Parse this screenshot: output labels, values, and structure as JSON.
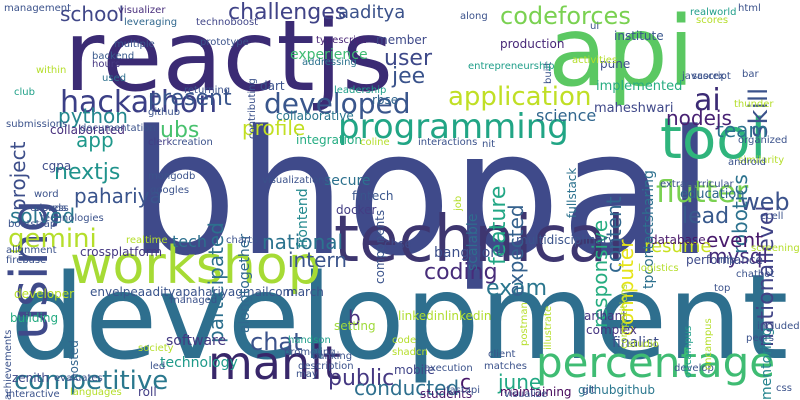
{
  "words": [
    {
      "text": "bhopal",
      "color": "#3f4a8a"
    },
    {
      "text": "development",
      "color": "#2e6f8e"
    },
    {
      "text": "reactjs",
      "color": "#3b2b74"
    },
    {
      "text": "api",
      "color": "#5bc862"
    },
    {
      "text": "technical",
      "color": "#3e3670"
    },
    {
      "text": "workshop",
      "color": "#a6db35"
    },
    {
      "text": "using",
      "color": "#3f4a8a"
    },
    {
      "text": "tool",
      "color": "#2fb47c"
    },
    {
      "text": "percentage",
      "color": "#3fbc73"
    },
    {
      "text": "manit",
      "color": "#38276a"
    },
    {
      "text": "programming",
      "color": "#21a585"
    },
    {
      "text": "developed",
      "color": "#39568c"
    },
    {
      "text": "hackathon",
      "color": "#3b3f86"
    },
    {
      "text": "challenges",
      "color": "#404387"
    },
    {
      "text": "codeforces",
      "color": "#7ad151"
    },
    {
      "text": "competitive",
      "color": "#2a788e"
    },
    {
      "text": "flutter",
      "color": "#7ad151"
    },
    {
      "text": "application",
      "color": "#c0df25"
    },
    {
      "text": "gemini",
      "color": "#b5de2b"
    },
    {
      "text": "skill",
      "color": "#3b528b"
    },
    {
      "text": "web",
      "color": "#3b528b"
    },
    {
      "text": "national",
      "color": "#2c738e"
    },
    {
      "text": "nationallevel",
      "color": "#414487"
    },
    {
      "text": "ai",
      "color": "#3b2a74"
    },
    {
      "text": "school",
      "color": "#404788"
    },
    {
      "text": "present",
      "color": "#39558c"
    },
    {
      "text": "aaditya",
      "color": "#3b528b"
    },
    {
      "text": "team",
      "color": "#2c728e"
    },
    {
      "text": "robotics",
      "color": "#2c728e"
    },
    {
      "text": "nodejs",
      "color": "#482173"
    },
    {
      "text": "lead",
      "color": "#38598c"
    },
    {
      "text": "event",
      "color": "#481a6c"
    },
    {
      "text": "mysql",
      "color": "#472d7b"
    },
    {
      "text": "resume",
      "color": "#c8e020"
    },
    {
      "text": "exam",
      "color": "#2a768e"
    },
    {
      "text": "intern",
      "color": "#3a538b"
    },
    {
      "text": "coding",
      "color": "#472c7a"
    },
    {
      "text": "public",
      "color": "#453882"
    },
    {
      "text": "june",
      "color": "#22a884"
    },
    {
      "text": "conducted",
      "color": "#2e6f8e"
    },
    {
      "text": "chat",
      "color": "#3b528b"
    },
    {
      "text": "tech",
      "color": "#2d708e"
    },
    {
      "text": "user",
      "color": "#3e4989"
    },
    {
      "text": "jee",
      "color": "#3a538b"
    },
    {
      "text": "profile",
      "color": "#c2df23"
    },
    {
      "text": "ubs",
      "color": "#48c16e"
    },
    {
      "text": "participated",
      "color": "#2d708e"
    },
    {
      "text": "nextjs",
      "color": "#20938c"
    },
    {
      "text": "python",
      "color": "#24878e"
    },
    {
      "text": "app",
      "color": "#1f988b"
    },
    {
      "text": "solved",
      "color": "#2a788e"
    },
    {
      "text": "pahariya",
      "color": "#3a548c"
    },
    {
      "text": "project",
      "color": "#3d4e8a"
    },
    {
      "text": "feature",
      "color": "#22a785"
    },
    {
      "text": "responsive",
      "color": "#27ad81"
    },
    {
      "text": "content",
      "color": "#31678e"
    },
    {
      "text": "expected",
      "color": "#34618d"
    },
    {
      "text": "computer",
      "color": "#e5e419"
    },
    {
      "text": "science",
      "color": "#31668e"
    },
    {
      "text": "fullstack",
      "color": "#2c728e"
    },
    {
      "text": "education",
      "color": "#31688e"
    },
    {
      "text": "maheshwari",
      "color": "#3f4889"
    },
    {
      "text": "implemented",
      "color": "#27ad81"
    },
    {
      "text": "production",
      "color": "#482878"
    },
    {
      "text": "institute",
      "color": "#39568c"
    },
    {
      "text": "bangalore",
      "color": "#3c4f8a"
    },
    {
      "text": "b",
      "color": "#472f7d"
    },
    {
      "text": "c",
      "color": "#481668"
    },
    {
      "text": "finalist",
      "color": "#3d4d8a"
    },
    {
      "text": "software",
      "color": "#443a83"
    },
    {
      "text": "technology",
      "color": "#1f9a8a"
    },
    {
      "text": "building",
      "color": "#25ab82"
    },
    {
      "text": "developer",
      "color": "#b8de29"
    },
    {
      "text": "crossplatform",
      "color": "#453882"
    },
    {
      "text": "envelpeaadityapahariyagmailcom",
      "color": "#3a548c"
    },
    {
      "text": "linkedinlinkedin",
      "color": "#b0dd2f"
    },
    {
      "text": "maintaining",
      "color": "#46075a"
    },
    {
      "text": "githubgithub",
      "color": "#2a778e"
    },
    {
      "text": "students",
      "color": "#48186a"
    },
    {
      "text": "multidisciplinary",
      "color": "#3a538b"
    },
    {
      "text": "arihant",
      "color": "#453581"
    },
    {
      "text": "complex",
      "color": "#463480"
    },
    {
      "text": "secure",
      "color": "#2c718e"
    },
    {
      "text": "fintech",
      "color": "#39558c"
    },
    {
      "text": "docker",
      "color": "#433d84"
    },
    {
      "text": "frontend",
      "color": "#23898e"
    },
    {
      "text": "components",
      "color": "#3a538b"
    },
    {
      "text": "scalable",
      "color": "#2f6c8e"
    },
    {
      "text": "mobile",
      "color": "#404588"
    },
    {
      "text": "hosted",
      "color": "#32658e"
    },
    {
      "text": "zenith",
      "color": "#3e4a89"
    },
    {
      "text": "roll",
      "color": "#433e85"
    },
    {
      "text": "member",
      "color": "#3e4989"
    },
    {
      "text": "pune",
      "color": "#3d4e8a"
    },
    {
      "text": "typescript",
      "color": "#482475"
    },
    {
      "text": "experience",
      "color": "#3fbc73"
    },
    {
      "text": "rbse",
      "color": "#32658e"
    },
    {
      "text": "cbse",
      "color": "#3e4a89"
    },
    {
      "text": "dart",
      "color": "#3b518b"
    },
    {
      "text": "setting",
      "color": "#9fda3a"
    },
    {
      "text": "march",
      "color": "#3b528b"
    },
    {
      "text": "mentoring",
      "color": "#25848e"
    },
    {
      "text": "collaborated",
      "color": "#472f7d"
    },
    {
      "text": "cgpa",
      "color": "#3e4c8a"
    },
    {
      "text": "collaborative",
      "color": "#2a768e"
    },
    {
      "text": "integration",
      "color": "#25ac82"
    },
    {
      "text": "alongtogether",
      "color": "#31688e"
    },
    {
      "text": "database",
      "color": "#481769"
    },
    {
      "text": "performance",
      "color": "#3e4a89"
    },
    {
      "text": "tpcontactsharing",
      "color": "#2d708e"
    },
    {
      "text": "technoboost",
      "color": "#404588"
    },
    {
      "text": "visualizer",
      "color": "#472d7b"
    },
    {
      "text": "leveraging",
      "color": "#31688e"
    },
    {
      "text": "multiple",
      "color": "#3a538b"
    },
    {
      "text": "backend",
      "color": "#38598c"
    },
    {
      "text": "hours",
      "color": "#453781"
    },
    {
      "text": "used",
      "color": "#2d708e"
    },
    {
      "text": "prototype",
      "color": "#3b528b"
    },
    {
      "text": "returning",
      "color": "#3b528b"
    },
    {
      "text": "contributing",
      "color": "#3b518b"
    },
    {
      "text": "addressing",
      "color": "#2c728e"
    },
    {
      "text": "leadership",
      "color": "#1f9e89"
    },
    {
      "text": "within",
      "color": "#b5de2b"
    },
    {
      "text": "club",
      "color": "#1fa088"
    },
    {
      "text": "submissions",
      "color": "#3b528b"
    },
    {
      "text": "documentation",
      "color": "#3b528b"
    },
    {
      "text": "github",
      "color": "#3b528b"
    },
    {
      "text": "clerk",
      "color": "#433e85"
    },
    {
      "text": "creation",
      "color": "#3b528b"
    },
    {
      "text": "coline",
      "color": "#b5de2b"
    },
    {
      "text": "interactions",
      "color": "#3b528b"
    },
    {
      "text": "nit",
      "color": "#3b528b"
    },
    {
      "text": "mongodb",
      "color": "#3b528b"
    },
    {
      "text": "googles",
      "color": "#3b528b"
    },
    {
      "text": "word",
      "color": "#3b528b"
    },
    {
      "text": "clouds",
      "color": "#3b528b"
    },
    {
      "text": "express",
      "color": "#3b528b"
    },
    {
      "text": "technologies",
      "color": "#3b528b"
    },
    {
      "text": "bootstrap",
      "color": "#3b528b"
    },
    {
      "text": "realtime",
      "color": "#b5de2b"
    },
    {
      "text": "charts",
      "color": "#3b528b"
    },
    {
      "text": "alignment",
      "color": "#3b528b"
    },
    {
      "text": "firebase",
      "color": "#3b528b"
    },
    {
      "text": "managed",
      "color": "#3b528b"
    },
    {
      "text": "handson",
      "color": "#1f9e89"
    },
    {
      "text": "promoting",
      "color": "#3b528b"
    },
    {
      "text": "banking",
      "color": "#3b528b"
    },
    {
      "text": "code",
      "color": "#b5de2b"
    },
    {
      "text": "shadcn",
      "color": "#b5de2b"
    },
    {
      "text": "society",
      "color": "#b5de2b"
    },
    {
      "text": "achievements",
      "color": "#3b528b"
    },
    {
      "text": "may",
      "color": "#3b528b"
    },
    {
      "text": "description",
      "color": "#3b528b"
    },
    {
      "text": "evaluates",
      "color": "#3b528b"
    },
    {
      "text": "languages",
      "color": "#b5de2b"
    },
    {
      "text": "led",
      "color": "#3b528b"
    },
    {
      "text": "interactive",
      "color": "#3b528b"
    },
    {
      "text": "execution",
      "color": "#3b528b"
    },
    {
      "text": "matches",
      "color": "#3b528b"
    },
    {
      "text": "fastapi",
      "color": "#3b528b"
    },
    {
      "text": "visualize",
      "color": "#3b528b"
    },
    {
      "text": "client",
      "color": "#3b528b"
    },
    {
      "text": "studio",
      "color": "#b5de2b"
    },
    {
      "text": "peers",
      "color": "#3b528b"
    },
    {
      "text": "develop",
      "color": "#3b528b"
    },
    {
      "text": "offcampus",
      "color": "#1f9e89"
    },
    {
      "text": "oncampus",
      "color": "#b5de2b"
    },
    {
      "text": "chatbot",
      "color": "#3b528b"
    },
    {
      "text": "screening",
      "color": "#b5de2b"
    },
    {
      "text": "ecell",
      "color": "#3b528b"
    },
    {
      "text": "nlp",
      "color": "#3b528b"
    },
    {
      "text": "css",
      "color": "#3b528b"
    },
    {
      "text": "included",
      "color": "#3b528b"
    },
    {
      "text": "top",
      "color": "#3b528b"
    },
    {
      "text": "logistics",
      "color": "#b5de2b"
    },
    {
      "text": "similarity",
      "color": "#b5de2b"
    },
    {
      "text": "android",
      "color": "#3b528b"
    },
    {
      "text": "organized",
      "color": "#3b528b"
    },
    {
      "text": "thunder",
      "color": "#b5de2b"
    },
    {
      "text": "bar",
      "color": "#3b528b"
    },
    {
      "text": "scorex",
      "color": "#3b528b"
    },
    {
      "text": "javascript",
      "color": "#3b528b"
    },
    {
      "text": "management",
      "color": "#3b528b"
    },
    {
      "text": "realworld",
      "color": "#1f9e89"
    },
    {
      "text": "html",
      "color": "#3b528b"
    },
    {
      "text": "scores",
      "color": "#b5de2b"
    },
    {
      "text": "ui",
      "color": "#3b528b"
    },
    {
      "text": "along",
      "color": "#3b528b"
    },
    {
      "text": "activities",
      "color": "#b5de2b"
    },
    {
      "text": "built",
      "color": "#3b528b"
    },
    {
      "text": "entrepreneurship",
      "color": "#1f9e89"
    },
    {
      "text": "extracurricular",
      "color": "#3b528b"
    },
    {
      "text": "competitions",
      "color": "#b5de2b"
    },
    {
      "text": "illustrate",
      "color": "#b5de2b"
    },
    {
      "text": "postman",
      "color": "#b5de2b"
    },
    {
      "text": "job",
      "color": "#b5de2b"
    },
    {
      "text": "vc",
      "color": "#3b528b"
    },
    {
      "text": "visualizations",
      "color": "#3b528b"
    },
    {
      "text": "git",
      "color": "#3b528b"
    }
  ]
}
